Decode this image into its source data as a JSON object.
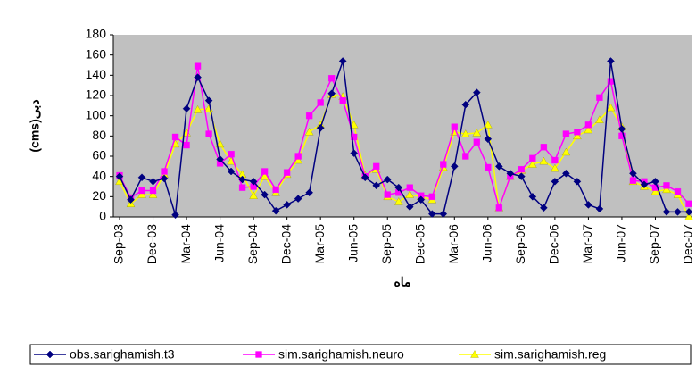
{
  "chart_data": {
    "type": "line",
    "y_label": "(cms)دبی",
    "x_label": "ماه",
    "categories": [
      "Sep-03",
      null,
      null,
      "Dec-03",
      null,
      null,
      "Mar-04",
      null,
      null,
      "Jun-04",
      null,
      null,
      "Sep-04",
      null,
      null,
      "Dec-04",
      null,
      null,
      "Mar-05",
      null,
      null,
      "Jun-05",
      null,
      null,
      "Sep-05",
      null,
      null,
      "Dec-05",
      null,
      null,
      "Mar-06",
      null,
      null,
      "Jun-06",
      null,
      null,
      "Sep-06",
      null,
      null,
      "Dec-06",
      null,
      null,
      "Mar-07",
      null,
      null,
      "Jun-07",
      null,
      null,
      "Sep-07",
      null,
      null,
      "Dec-07"
    ],
    "series": [
      {
        "name": "obs.sarighamish.t3",
        "color": "#000080",
        "marker": "diamond",
        "values": [
          40,
          17,
          39,
          35,
          38,
          2,
          107,
          138,
          115,
          57,
          45,
          37,
          35,
          22,
          6,
          12,
          18,
          24,
          88,
          122,
          154,
          63,
          39,
          31,
          37,
          29,
          10,
          17,
          3,
          3,
          50,
          111,
          123,
          77,
          50,
          43,
          40,
          20,
          9,
          35,
          43,
          35,
          12,
          8,
          154,
          87,
          43,
          32,
          35,
          5,
          5,
          5
        ]
      },
      {
        "name": "sim.sarighamish.neuro",
        "color": "#ff00ff",
        "marker": "square",
        "values": [
          41,
          19,
          26,
          26,
          45,
          79,
          71,
          149,
          82,
          53,
          62,
          29,
          30,
          45,
          27,
          44,
          60,
          100,
          113,
          137,
          115,
          79,
          40,
          50,
          22,
          24,
          29,
          21,
          20,
          52,
          89,
          60,
          74,
          49,
          9,
          40,
          47,
          58,
          69,
          56,
          82,
          84,
          91,
          118,
          134,
          80,
          36,
          35,
          29,
          31,
          25,
          13
        ]
      },
      {
        "name": "sim.sarighamish.reg",
        "color": "#ffff00",
        "marker": "triangle",
        "values": [
          35,
          13,
          22,
          22,
          42,
          72,
          83,
          106,
          107,
          72,
          55,
          42,
          21,
          40,
          24,
          42,
          56,
          84,
          91,
          121,
          119,
          91,
          41,
          47,
          20,
          15,
          22,
          20,
          17,
          49,
          84,
          82,
          83,
          91,
          9,
          40,
          46,
          52,
          55,
          48,
          64,
          80,
          86,
          96,
          108,
          89,
          35,
          30,
          25,
          27,
          22,
          0
        ]
      }
    ],
    "ylim": [
      0,
      180
    ],
    "yticks": [
      0,
      20,
      40,
      60,
      80,
      100,
      120,
      140,
      160,
      180
    ]
  }
}
